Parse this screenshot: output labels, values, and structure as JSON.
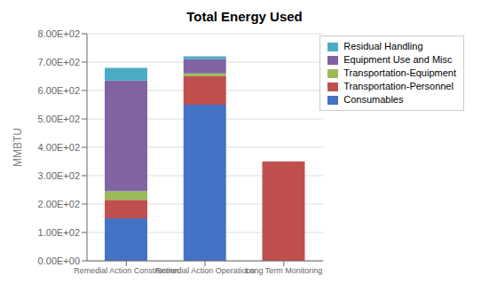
{
  "chart_data": {
    "type": "bar",
    "title": "Total Energy Used",
    "y_label": "MMBTU",
    "categories": [
      "Remedial Action Construction",
      "Remedial Action Operations",
      "Long Term Monitoring"
    ],
    "series": [
      {
        "name": "Consumables",
        "color": "#4472C4",
        "values": [
          150,
          550,
          0
        ]
      },
      {
        "name": "Transportation-Personnel",
        "color": "#C0504D",
        "values": [
          65,
          100,
          350
        ]
      },
      {
        "name": "Transportation-Equipment",
        "color": "#9BBB59",
        "values": [
          30,
          10,
          0
        ]
      },
      {
        "name": "Equipment Use and Misc",
        "color": "#8064A2",
        "values": [
          390,
          50,
          0
        ]
      },
      {
        "name": "Residual Handling",
        "color": "#4BACC6",
        "values": [
          45,
          10,
          0
        ]
      }
    ],
    "stacked": true,
    "ylim": [
      0,
      800
    ],
    "yticks": [
      {
        "value": 0,
        "label": "0.00E+00"
      },
      {
        "value": 100,
        "label": "1.00E+02"
      },
      {
        "value": 200,
        "label": "2.00E+02"
      },
      {
        "value": 300,
        "label": "3.00E+02"
      },
      {
        "value": 400,
        "label": "4.00E+02"
      },
      {
        "value": 500,
        "label": "5.00E+02"
      },
      {
        "value": 600,
        "label": "6.00E+02"
      },
      {
        "value": 700,
        "label": "7.00E+02"
      },
      {
        "value": 800,
        "label": "8.00E+02"
      }
    ],
    "grid": true,
    "legend": "upper right"
  }
}
